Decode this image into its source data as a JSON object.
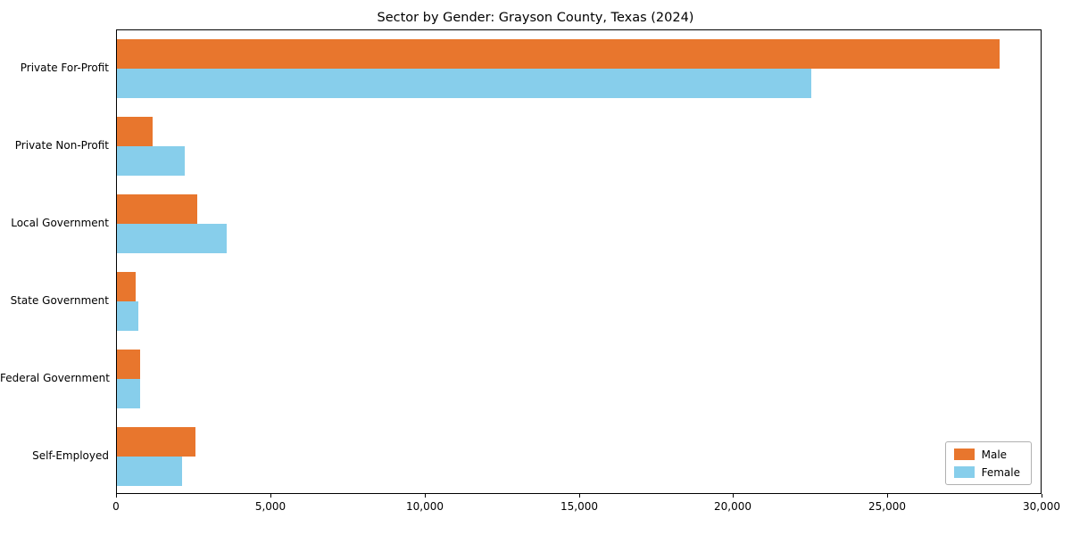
{
  "title": "Sector by Gender: Grayson County, Texas (2024)",
  "chart_data": {
    "type": "bar",
    "orientation": "horizontal",
    "title": "Sector by Gender: Grayson County, Texas (2024)",
    "categories": [
      "Private For-Profit",
      "Private Non-Profit",
      "Local Government",
      "State Government",
      "Federal Government",
      "Self-Employed"
    ],
    "series": [
      {
        "name": "Male",
        "color": "#e8762d",
        "values": [
          28600,
          1150,
          2600,
          600,
          750,
          2550
        ]
      },
      {
        "name": "Female",
        "color": "#87ceeb",
        "values": [
          22500,
          2200,
          3550,
          700,
          750,
          2100
        ]
      }
    ],
    "xlabel": "",
    "ylabel": "",
    "xlim": [
      0,
      30000
    ],
    "xticks": [
      0,
      5000,
      10000,
      15000,
      20000,
      25000,
      30000
    ],
    "xtick_labels": [
      "0",
      "5,000",
      "10,000",
      "15,000",
      "20,000",
      "25,000",
      "30,000"
    ],
    "grid": false,
    "legend_position": "lower right"
  }
}
